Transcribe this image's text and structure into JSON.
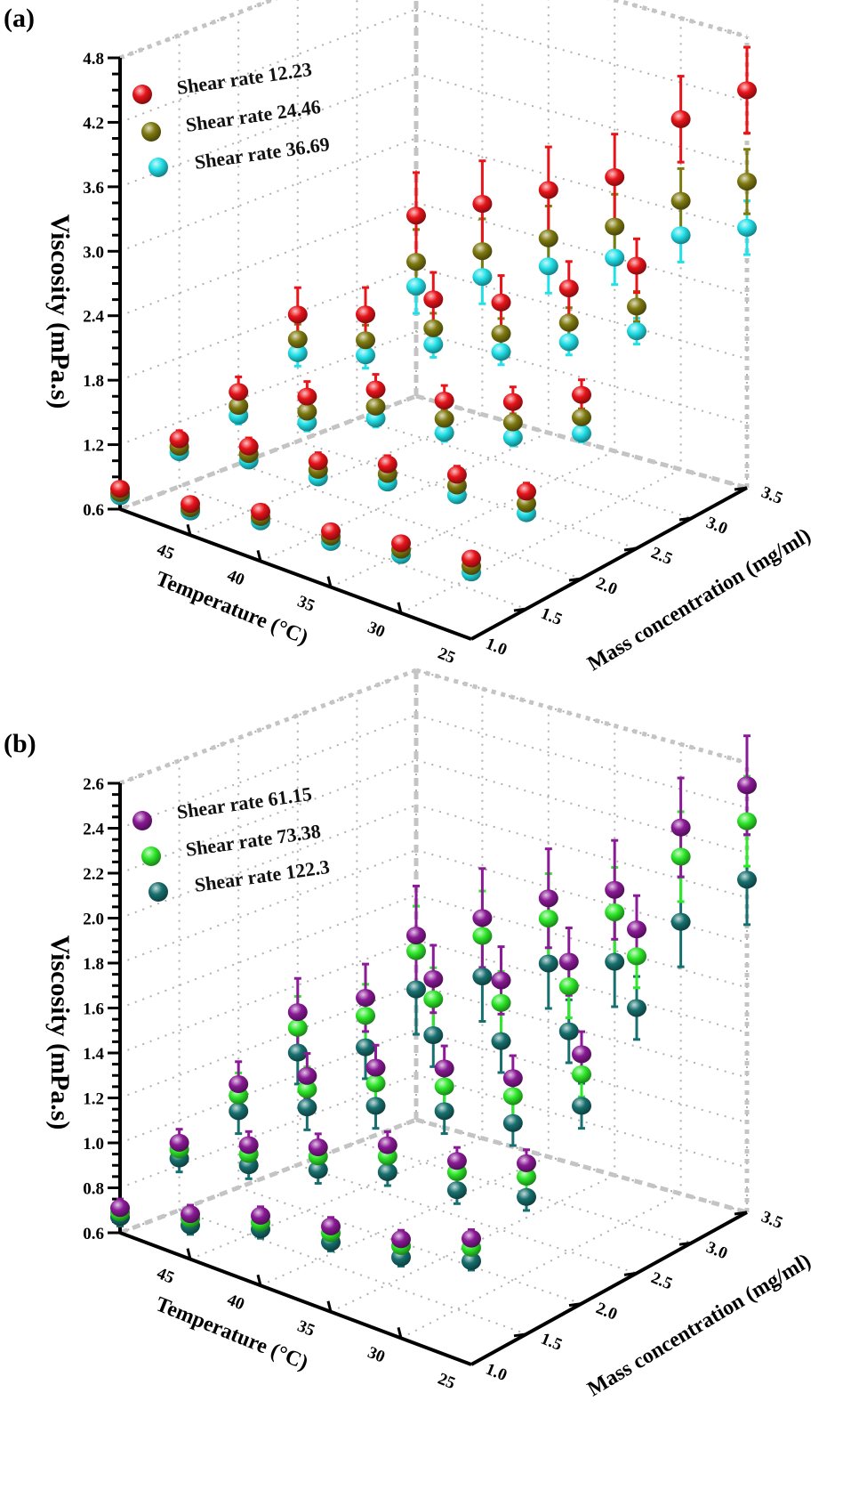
{
  "chart_data": [
    {
      "type": "scatter3d",
      "panel_label": "(a)",
      "ylabel": "Viscosity (mPa.s)",
      "xlabel": "Temperature (°C)",
      "zlabel": "Mass concentration (mg/ml)",
      "ylim": [
        0.6,
        4.8
      ],
      "yticks": [
        "0.6",
        "1.2",
        "1.8",
        "2.4",
        "3.0",
        "3.6",
        "4.2",
        "4.8"
      ],
      "temperature_range": [
        25,
        50
      ],
      "temperature_ticks": [
        "45",
        "40",
        "35",
        "30",
        "25"
      ],
      "concentration_range": [
        1.0,
        3.5
      ],
      "concentration_ticks": [
        "1.0",
        "1.5",
        "2.0",
        "2.5",
        "3.0",
        "3.5"
      ],
      "temperatures": [
        50,
        45,
        40,
        35,
        30,
        25
      ],
      "concentrations": [
        1.0,
        1.5,
        2.0,
        2.5,
        3.5
      ],
      "grid": true,
      "legend_position": "top-left",
      "series": [
        {
          "name": "Shear rate 12.23",
          "color": "#e8141a",
          "values": [
            [
              0.79,
              0.89,
              1.06,
              1.12,
              1.25,
              1.35
            ],
            [
              1.04,
              1.2,
              1.29,
              1.49,
              1.62,
              1.69
            ],
            [
              1.27,
              1.44,
              1.72,
              1.83,
              2.03,
              2.31
            ],
            [
              1.78,
              1.98,
              2.32,
              2.49,
              2.82,
              3.23
            ],
            [
              2.28,
              2.56,
              2.86,
              3.15,
              3.86,
              4.3
            ]
          ],
          "error": [
            0.05,
            0.08,
            0.14,
            0.25,
            0.4
          ]
        },
        {
          "name": "Shear rate 24.46",
          "color": "#7f7a10",
          "values": [
            [
              0.75,
              0.85,
              1.01,
              1.07,
              1.19,
              1.28
            ],
            [
              0.97,
              1.13,
              1.21,
              1.4,
              1.52,
              1.58
            ],
            [
              1.14,
              1.3,
              1.56,
              1.66,
              1.84,
              2.1
            ],
            [
              1.55,
              1.74,
              2.05,
              2.2,
              2.5,
              2.85
            ],
            [
              1.85,
              2.12,
              2.41,
              2.69,
              3.1,
              3.45
            ]
          ],
          "error": [
            0.03,
            0.05,
            0.08,
            0.14,
            0.3
          ]
        },
        {
          "name": "Shear rate 36.69",
          "color": "#22e0e8",
          "values": [
            [
              0.72,
              0.82,
              0.97,
              1.02,
              1.14,
              1.22
            ],
            [
              0.92,
              1.07,
              1.14,
              1.32,
              1.43,
              1.49
            ],
            [
              1.05,
              1.2,
              1.45,
              1.53,
              1.7,
              1.95
            ],
            [
              1.42,
              1.6,
              1.9,
              2.03,
              2.32,
              2.62
            ],
            [
              1.62,
              1.88,
              2.15,
              2.4,
              2.78,
              3.02
            ]
          ],
          "error": [
            0.03,
            0.05,
            0.08,
            0.12,
            0.25
          ]
        }
      ]
    },
    {
      "type": "scatter3d",
      "panel_label": "(b)",
      "ylabel": "Viscosity (mPa.s)",
      "xlabel": "Temperature (°C)",
      "zlabel": "Mass concentration (mg/ml)",
      "ylim": [
        0.6,
        2.6
      ],
      "yticks": [
        "0.6",
        "0.8",
        "1.0",
        "1.2",
        "1.4",
        "1.6",
        "1.8",
        "2.0",
        "2.2",
        "2.4",
        "2.6"
      ],
      "temperature_range": [
        25,
        50
      ],
      "temperature_ticks": [
        "45",
        "40",
        "35",
        "30",
        "25"
      ],
      "concentration_range": [
        1.0,
        3.5
      ],
      "concentration_ticks": [
        "1.0",
        "1.5",
        "2.0",
        "2.5",
        "3.0",
        "3.5"
      ],
      "temperatures": [
        50,
        45,
        40,
        35,
        30,
        25
      ],
      "concentrations": [
        1.0,
        1.5,
        2.0,
        2.5,
        3.5
      ],
      "grid": true,
      "legend_position": "top-left",
      "series": [
        {
          "name": "Shear rate 61.15",
          "color": "#8a1a96",
          "values": [
            [
              0.71,
              0.8,
              0.91,
              0.98,
              1.04,
              1.16
            ],
            [
              0.9,
              1.0,
              1.1,
              1.22,
              1.26,
              1.36
            ],
            [
              1.06,
              1.2,
              1.34,
              1.44,
              1.5,
              1.71
            ],
            [
              1.28,
              1.44,
              1.62,
              1.71,
              1.89,
              2.13
            ],
            [
              1.42,
              1.58,
              1.75,
              1.87,
              2.23,
              2.5
            ]
          ],
          "error": [
            0.04,
            0.06,
            0.1,
            0.15,
            0.22
          ]
        },
        {
          "name": "Shear rate 73.38",
          "color": "#2ee82a",
          "values": [
            [
              0.69,
              0.78,
              0.88,
              0.95,
              1.01,
              1.12
            ],
            [
              0.87,
              0.96,
              1.06,
              1.17,
              1.21,
              1.3
            ],
            [
              1.01,
              1.14,
              1.27,
              1.36,
              1.42,
              1.62
            ],
            [
              1.21,
              1.36,
              1.53,
              1.61,
              1.78,
              2.01
            ],
            [
              1.35,
              1.5,
              1.66,
              1.77,
              2.1,
              2.34
            ]
          ],
          "error": [
            0.04,
            0.06,
            0.1,
            0.14,
            0.2
          ]
        },
        {
          "name": "Shear rate 122.3",
          "color": "#17706f",
          "values": [
            [
              0.67,
              0.75,
              0.85,
              0.91,
              0.96,
              1.06
            ],
            [
              0.83,
              0.91,
              1.0,
              1.1,
              1.13,
              1.21
            ],
            [
              0.94,
              1.06,
              1.17,
              1.25,
              1.3,
              1.48
            ],
            [
              1.1,
              1.22,
              1.37,
              1.44,
              1.58,
              1.78
            ],
            [
              1.18,
              1.32,
              1.46,
              1.55,
              1.81,
              2.08
            ]
          ],
          "error": [
            0.04,
            0.06,
            0.1,
            0.14,
            0.2
          ]
        }
      ]
    }
  ]
}
